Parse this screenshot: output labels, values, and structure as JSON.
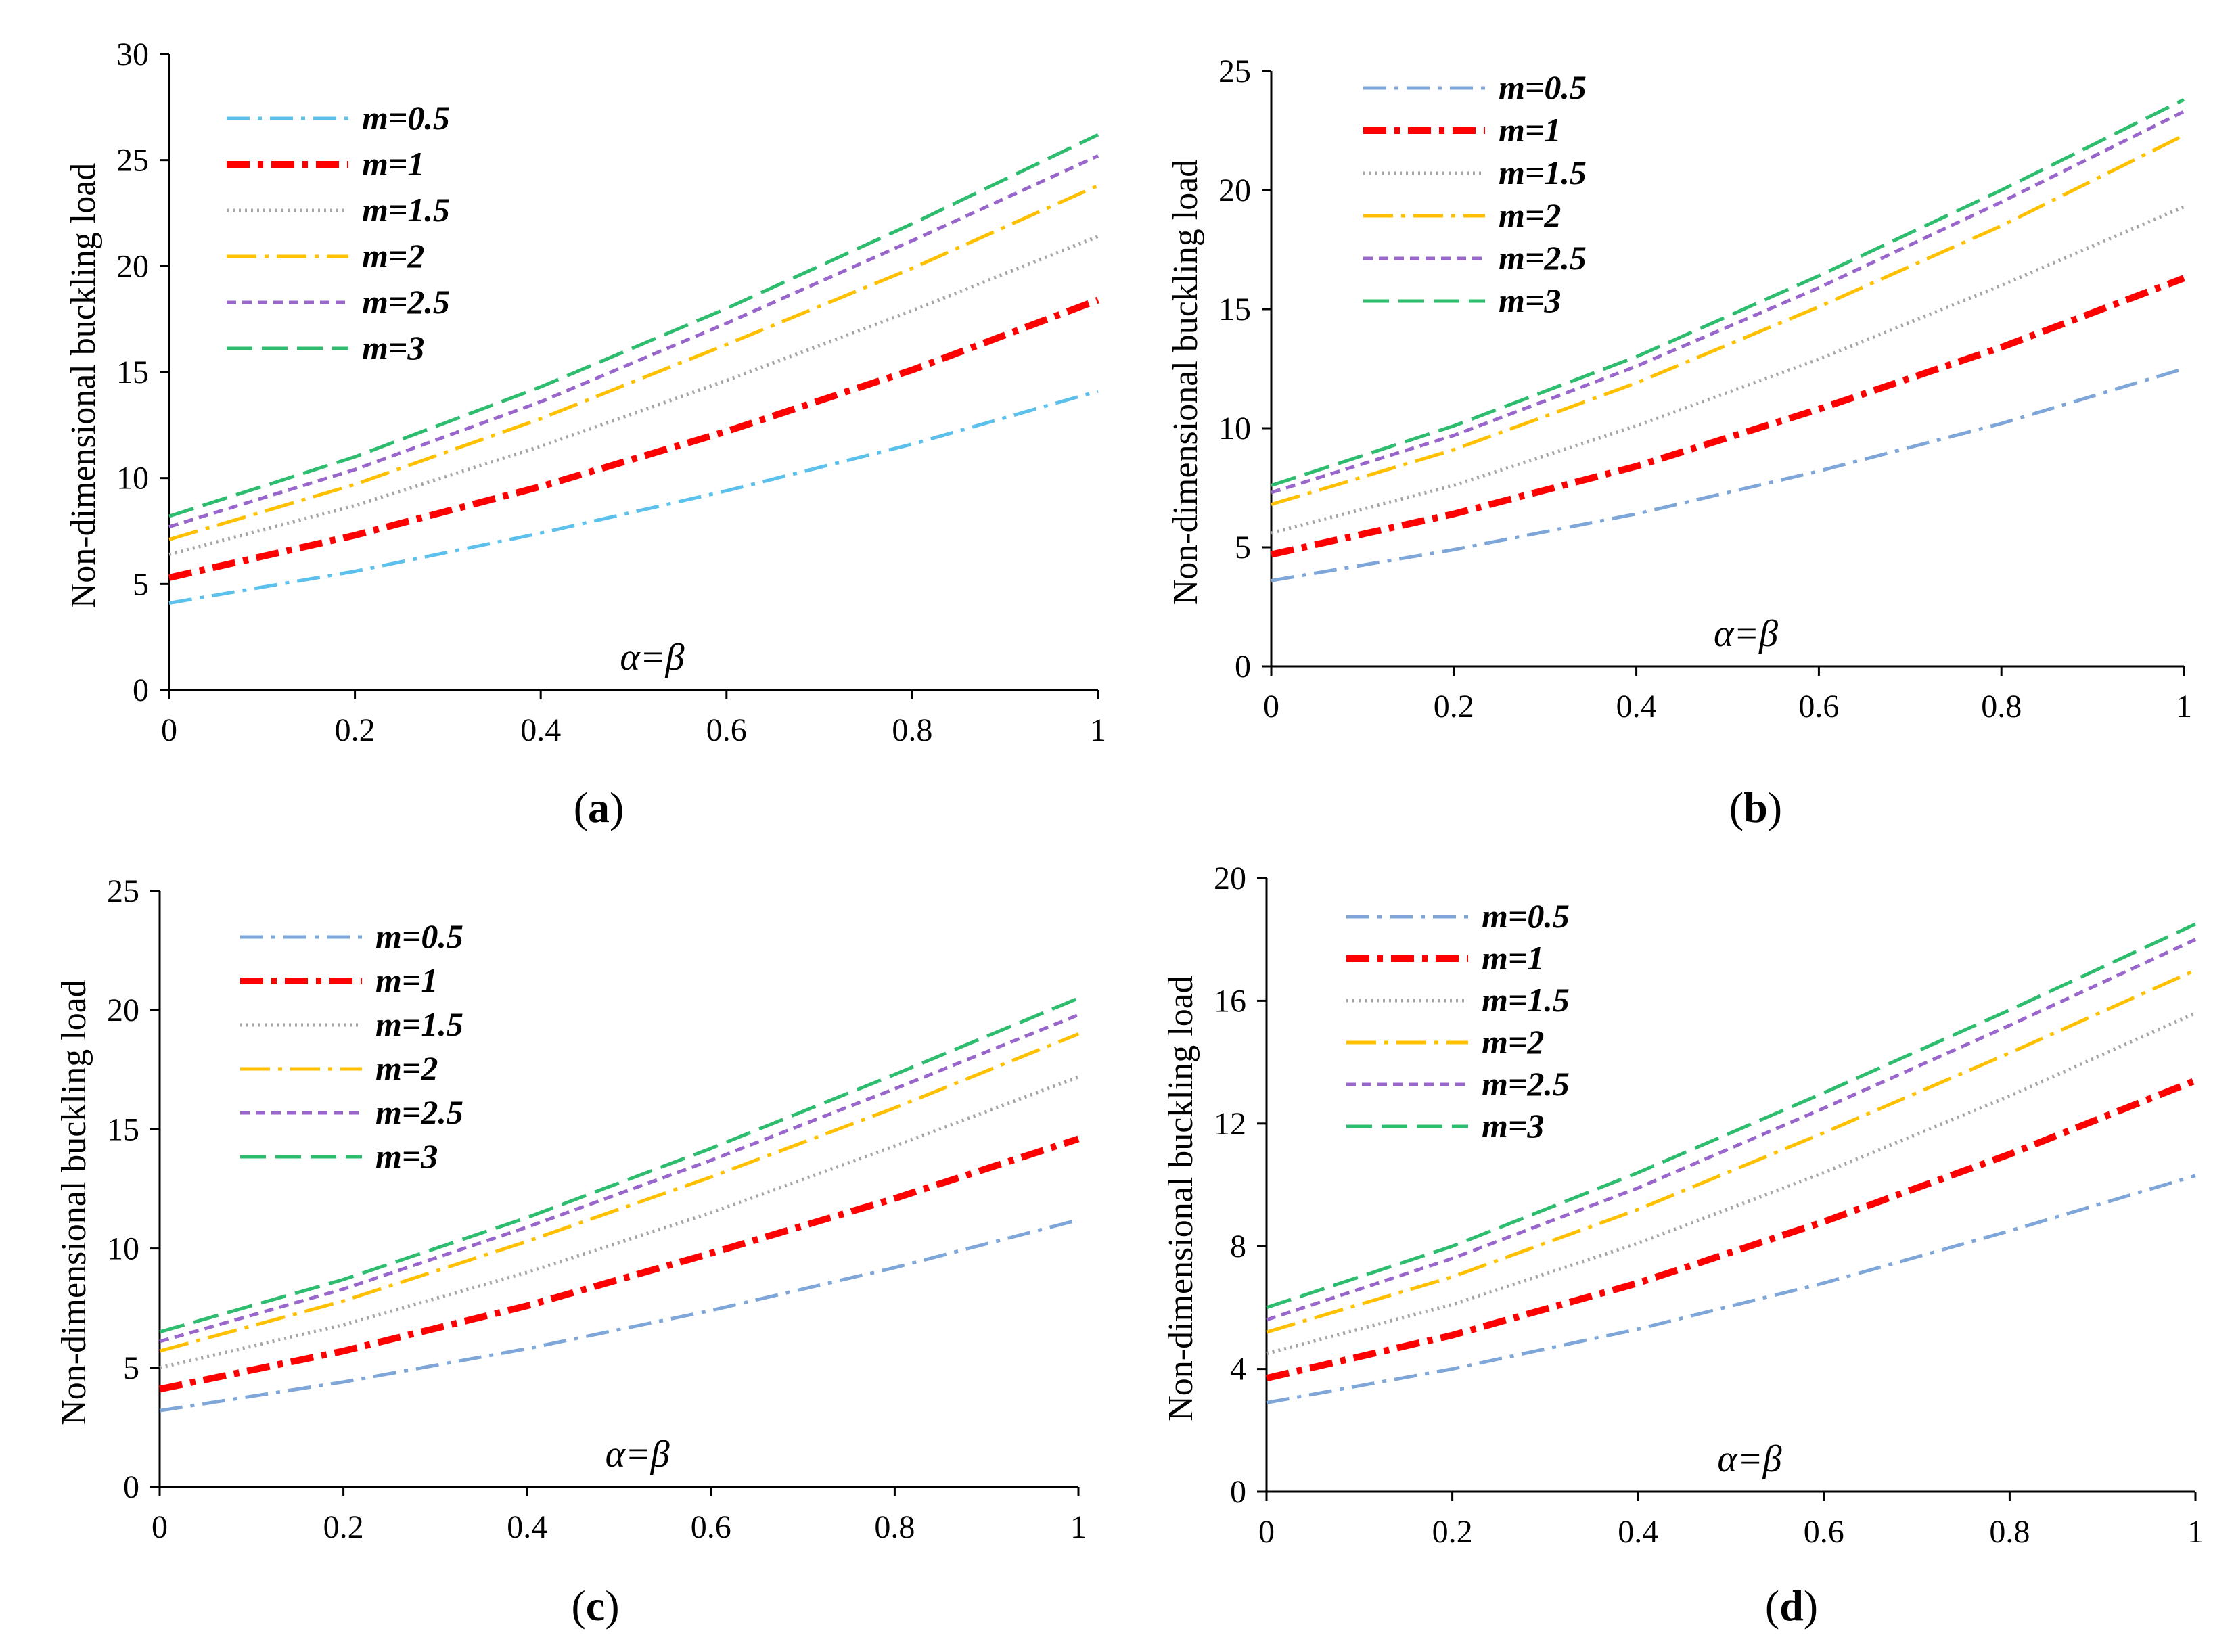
{
  "figure": {
    "background": "#ffffff"
  },
  "style": {
    "series": [
      {
        "color": "#5bc0eb",
        "dash": "dashdot"
      },
      {
        "color": "#ff0000",
        "dash": "dashdot-bold"
      },
      {
        "color": "#a6a6a6",
        "dash": "dot"
      },
      {
        "color": "#ffc000",
        "dash": "longdashdot"
      },
      {
        "color": "#9966cc",
        "dash": "shortdash"
      },
      {
        "color": "#2ebd6e",
        "dash": "longdash"
      }
    ],
    "series_alt_first_color": "#7fa6d8"
  },
  "chart_data": [
    {
      "panel_label": "(a)",
      "type": "line",
      "xlabel": "α=β",
      "ylabel": "Non-dimensional buckling load",
      "xlim": [
        0,
        1
      ],
      "ylim": [
        0,
        30
      ],
      "xticks": [
        "0",
        "0.2",
        "0.4",
        "0.6",
        "0.8",
        "1"
      ],
      "yticks": [
        "0",
        "5",
        "10",
        "15",
        "20",
        "25",
        "30"
      ],
      "x": [
        0,
        0.2,
        0.4,
        0.6,
        0.8,
        1
      ],
      "legend_position": "top-left",
      "series": [
        {
          "name": "m=0.5",
          "values": [
            4.1,
            5.6,
            7.4,
            9.4,
            11.6,
            14.1
          ]
        },
        {
          "name": "m=1",
          "values": [
            5.3,
            7.3,
            9.6,
            12.2,
            15.1,
            18.4
          ]
        },
        {
          "name": "m=1.5",
          "values": [
            6.4,
            8.7,
            11.5,
            14.6,
            17.9,
            21.4
          ]
        },
        {
          "name": "m=2",
          "values": [
            7.1,
            9.7,
            12.8,
            16.3,
            19.9,
            23.8
          ]
        },
        {
          "name": "m=2.5",
          "values": [
            7.7,
            10.4,
            13.6,
            17.3,
            21.2,
            25.2
          ]
        },
        {
          "name": "m=3",
          "values": [
            8.2,
            11.0,
            14.3,
            18.0,
            22.0,
            26.2
          ]
        }
      ]
    },
    {
      "panel_label": "(b)",
      "type": "line",
      "xlabel": "α=β",
      "ylabel": "Non-dimensional buckling load",
      "xlim": [
        0,
        1
      ],
      "ylim": [
        0,
        25
      ],
      "xticks": [
        "0",
        "0.2",
        "0.4",
        "0.6",
        "0.8",
        "1"
      ],
      "yticks": [
        "0",
        "5",
        "10",
        "15",
        "20",
        "25"
      ],
      "x": [
        0,
        0.2,
        0.4,
        0.6,
        0.8,
        1
      ],
      "legend_position": "top-left",
      "series": [
        {
          "name": "m=0.5",
          "values": [
            3.6,
            4.9,
            6.4,
            8.2,
            10.2,
            12.5
          ]
        },
        {
          "name": "m=1",
          "values": [
            4.7,
            6.4,
            8.4,
            10.8,
            13.4,
            16.3
          ]
        },
        {
          "name": "m=1.5",
          "values": [
            5.6,
            7.6,
            10.1,
            12.9,
            16.0,
            19.3
          ]
        },
        {
          "name": "m=2",
          "values": [
            6.8,
            9.1,
            11.9,
            15.1,
            18.5,
            22.3
          ]
        },
        {
          "name": "m=2.5",
          "values": [
            7.3,
            9.7,
            12.6,
            15.9,
            19.5,
            23.3
          ]
        },
        {
          "name": "m=3",
          "values": [
            7.6,
            10.1,
            13.0,
            16.4,
            20.0,
            23.8
          ]
        }
      ]
    },
    {
      "panel_label": "(c)",
      "type": "line",
      "xlabel": "α=β",
      "ylabel": "Non-dimensional buckling load",
      "xlim": [
        0,
        1
      ],
      "ylim": [
        0,
        25
      ],
      "xticks": [
        "0",
        "0.2",
        "0.4",
        "0.6",
        "0.8",
        "1"
      ],
      "yticks": [
        "0",
        "5",
        "10",
        "15",
        "20",
        "25"
      ],
      "x": [
        0,
        0.2,
        0.4,
        0.6,
        0.8,
        1
      ],
      "legend_position": "top-left",
      "series": [
        {
          "name": "m=0.5",
          "values": [
            3.2,
            4.4,
            5.8,
            7.4,
            9.2,
            11.2
          ]
        },
        {
          "name": "m=1",
          "values": [
            4.1,
            5.7,
            7.6,
            9.8,
            12.1,
            14.6
          ]
        },
        {
          "name": "m=1.5",
          "values": [
            5.0,
            6.8,
            9.0,
            11.5,
            14.3,
            17.2
          ]
        },
        {
          "name": "m=2",
          "values": [
            5.7,
            7.8,
            10.3,
            13.0,
            15.9,
            19.0
          ]
        },
        {
          "name": "m=2.5",
          "values": [
            6.1,
            8.3,
            10.9,
            13.7,
            16.7,
            19.8
          ]
        },
        {
          "name": "m=3",
          "values": [
            6.5,
            8.7,
            11.3,
            14.2,
            17.3,
            20.5
          ]
        }
      ]
    },
    {
      "panel_label": "(d)",
      "type": "line",
      "xlabel": "α=β",
      "ylabel": "Non-dimensional buckling load",
      "xlim": [
        0,
        1
      ],
      "ylim": [
        0,
        20
      ],
      "xticks": [
        "0",
        "0.2",
        "0.4",
        "0.6",
        "0.8",
        "1"
      ],
      "yticks": [
        "0",
        "4",
        "8",
        "12",
        "16",
        "20"
      ],
      "x": [
        0,
        0.2,
        0.4,
        0.6,
        0.8,
        1
      ],
      "legend_position": "top-left",
      "series": [
        {
          "name": "m=0.5",
          "values": [
            2.9,
            4.0,
            5.3,
            6.8,
            8.5,
            10.3
          ]
        },
        {
          "name": "m=1",
          "values": [
            3.7,
            5.1,
            6.8,
            8.8,
            11.0,
            13.4
          ]
        },
        {
          "name": "m=1.5",
          "values": [
            4.5,
            6.1,
            8.1,
            10.4,
            12.9,
            15.6
          ]
        },
        {
          "name": "m=2",
          "values": [
            5.2,
            7.0,
            9.2,
            11.7,
            14.3,
            17.0
          ]
        },
        {
          "name": "m=2.5",
          "values": [
            5.6,
            7.6,
            9.9,
            12.5,
            15.2,
            18.0
          ]
        },
        {
          "name": "m=3",
          "values": [
            6.0,
            8.0,
            10.4,
            13.0,
            15.7,
            18.5
          ]
        }
      ]
    }
  ]
}
